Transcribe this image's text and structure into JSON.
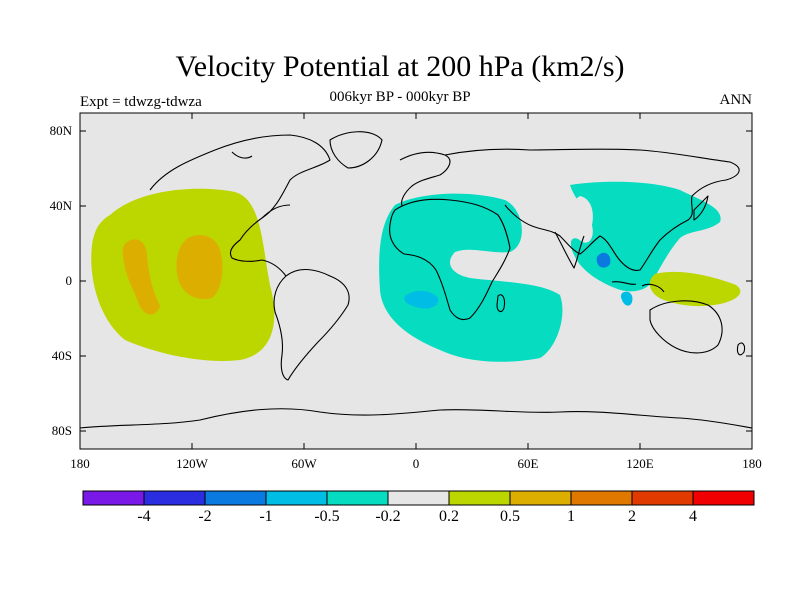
{
  "title": "Velocity Potential at 200 hPa (km2/s)",
  "subtitle": "006kyr BP - 000kyr BP",
  "left_label": "Expt = tdwzg-tdwza",
  "right_label": "ANN",
  "y_ticks": [
    "80N",
    "40N",
    "0",
    "40S",
    "80S"
  ],
  "x_ticks": [
    "180",
    "120W",
    "60W",
    "0",
    "60E",
    "120E",
    "180"
  ],
  "colorbar": {
    "colors": [
      "#7a18e8",
      "#2a2ee0",
      "#0a7ae0",
      "#00bde6",
      "#05dcc0",
      "#e6e6e6",
      "#bcd600",
      "#dcae00",
      "#e07800",
      "#e03a00",
      "#f00000"
    ],
    "labels": [
      "-4",
      "-2",
      "-1",
      "-0.5",
      "-0.2",
      "0.2",
      "0.5",
      "1",
      "2",
      "4"
    ]
  },
  "map": {
    "background": "#e6e6e6",
    "positive_color": "#bcd600",
    "strong_positive_color": "#dcae00",
    "negative_color": "#05dcc0",
    "strong_negative_color": "#00bde6"
  }
}
